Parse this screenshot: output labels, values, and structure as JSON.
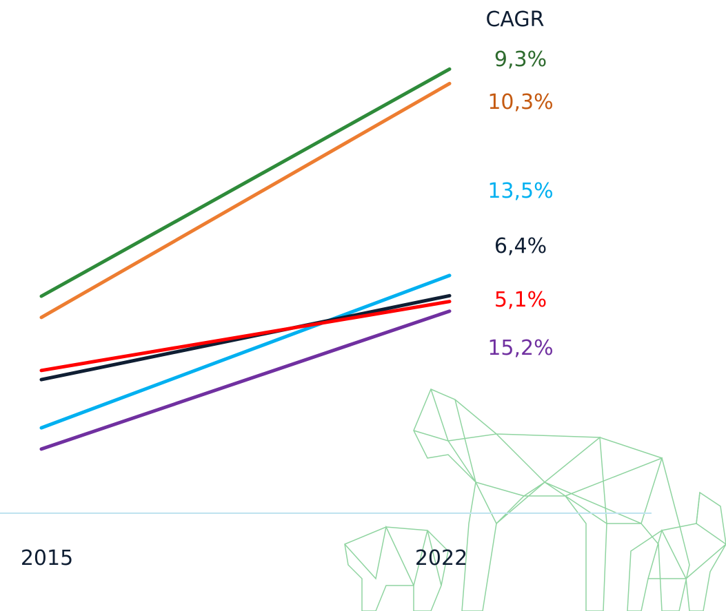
{
  "chart_data": {
    "type": "slope",
    "annotation": "CAGR",
    "categories": [
      "2015",
      "2022"
    ],
    "ylim": [
      0,
      100
    ],
    "series": [
      {
        "cagr_label": "9,3%",
        "color": "#2e8b3a",
        "label_color": "#2e6b2e",
        "values": [
          45,
          92.1
        ]
      },
      {
        "cagr_label": "10,3%",
        "color": "#ed7d31",
        "label_color": "#c55a11",
        "values": [
          40.6,
          89.1
        ]
      },
      {
        "cagr_label": "13,5%",
        "color": "#00b0f0",
        "label_color": "#00b0f0",
        "values": [
          17.7,
          49.3
        ]
      },
      {
        "cagr_label": "6,4%",
        "color": "#0f1e33",
        "label_color": "#0f1e33",
        "values": [
          27.7,
          45.1
        ]
      },
      {
        "cagr_label": "5,1%",
        "color": "#ff0000",
        "label_color": "#ff0000",
        "values": [
          29.6,
          43.9
        ]
      },
      {
        "cagr_label": "15,2%",
        "color": "#7030a0",
        "label_color": "#7030a0",
        "values": [
          13.3,
          41.9
        ]
      }
    ]
  }
}
